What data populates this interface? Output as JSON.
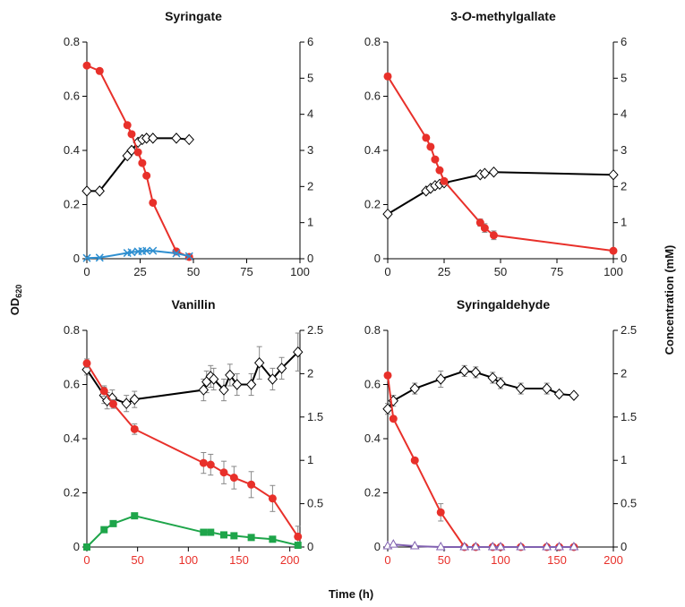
{
  "figure": {
    "ylabel_left": "OD",
    "ylabel_left_subscript": "620",
    "ylabel_right": "Concentration (mM)",
    "xlabel": "Time (h)"
  },
  "colors": {
    "od": "#000000",
    "substrate": "#e8302a",
    "blue_series": "#2e8fd0",
    "green_series": "#1ea54a",
    "purple_series": "#8060b0",
    "error_bar": "#888888",
    "red_axis_labels": "#e8302a"
  },
  "chart_data": [
    {
      "type": "line",
      "title": "Syringate",
      "xlim": [
        0,
        100
      ],
      "xticks": [
        0,
        25,
        50,
        75,
        100
      ],
      "ylim_left": [
        0,
        0.8
      ],
      "yticks_left": [
        0,
        0.2,
        0.4,
        0.6,
        0.8
      ],
      "ylim_right": [
        0,
        6
      ],
      "yticks_right": [
        0,
        1,
        2,
        3,
        4,
        5,
        6
      ],
      "xtick_color": "black",
      "grid": false,
      "series": [
        {
          "axis": "left",
          "color": "#000000",
          "marker": "diamond-open",
          "x": [
            0,
            6,
            19,
            21,
            24,
            26,
            28,
            31,
            42,
            48
          ],
          "y": [
            0.25,
            0.25,
            0.38,
            0.4,
            0.43,
            0.44,
            0.445,
            0.445,
            0.445,
            0.44
          ]
        },
        {
          "axis": "right",
          "color": "#e8302a",
          "marker": "circle",
          "x": [
            0,
            6,
            19,
            21,
            24,
            26,
            28,
            31,
            42,
            48
          ],
          "y": [
            5.35,
            5.2,
            3.7,
            3.45,
            2.95,
            2.65,
            2.3,
            1.55,
            0.2,
            0.05
          ]
        },
        {
          "axis": "right",
          "color": "#2e8fd0",
          "marker": "x",
          "x": [
            0,
            6,
            19,
            21,
            24,
            26,
            28,
            31,
            42,
            48
          ],
          "y": [
            0.02,
            0.03,
            0.16,
            0.18,
            0.2,
            0.21,
            0.22,
            0.22,
            0.15,
            0.07
          ]
        }
      ]
    },
    {
      "type": "line",
      "title_parts": [
        "3-",
        "O",
        "-methylgallate"
      ],
      "xlim": [
        0,
        100
      ],
      "xticks": [
        0,
        25,
        50,
        75,
        100
      ],
      "ylim_left": [
        0,
        0.8
      ],
      "yticks_left": [
        0,
        0.2,
        0.4,
        0.6,
        0.8
      ],
      "ylim_right": [
        0,
        6
      ],
      "yticks_right": [
        0,
        1,
        2,
        3,
        4,
        5,
        6
      ],
      "xtick_color": "black",
      "grid": false,
      "series": [
        {
          "axis": "left",
          "color": "#000000",
          "marker": "diamond-open",
          "x": [
            0,
            17,
            19,
            21,
            23,
            25,
            41,
            43,
            47,
            100
          ],
          "y": [
            0.165,
            0.25,
            0.26,
            0.27,
            0.275,
            0.28,
            0.31,
            0.315,
            0.32,
            0.31
          ]
        },
        {
          "axis": "right",
          "color": "#e8302a",
          "marker": "circle",
          "error": true,
          "x": [
            0,
            17,
            19,
            21,
            23,
            25,
            41,
            43,
            47,
            100
          ],
          "y": [
            5.05,
            3.35,
            3.1,
            2.75,
            2.45,
            2.15,
            1.0,
            0.85,
            0.65,
            0.22
          ],
          "err": [
            0.08,
            0.07,
            0.07,
            0.07,
            0.07,
            0.07,
            0.1,
            0.12,
            0.12,
            0
          ]
        }
      ]
    },
    {
      "type": "line",
      "title": "Vanillin",
      "xlim": [
        0,
        210
      ],
      "xticks": [
        0,
        50,
        100,
        150,
        200
      ],
      "ylim_left": [
        0,
        0.8
      ],
      "yticks_left": [
        0,
        0.2,
        0.4,
        0.6,
        0.8
      ],
      "ylim_right": [
        0,
        2.5
      ],
      "yticks_right": [
        0,
        0.5,
        1,
        1.5,
        2,
        2.5
      ],
      "xtick_color": "red",
      "grid": false,
      "series": [
        {
          "axis": "left",
          "color": "#000000",
          "marker": "diamond-open",
          "error": true,
          "x": [
            0,
            17,
            20,
            25,
            39,
            47,
            115,
            118,
            122,
            125,
            135,
            141,
            148,
            162,
            170,
            183,
            192,
            208
          ],
          "y": [
            0.655,
            0.56,
            0.54,
            0.55,
            0.53,
            0.545,
            0.58,
            0.61,
            0.63,
            0.62,
            0.58,
            0.635,
            0.6,
            0.6,
            0.68,
            0.62,
            0.66,
            0.72
          ],
          "err": [
            0.02,
            0.03,
            0.03,
            0.03,
            0.03,
            0.03,
            0.04,
            0.04,
            0.04,
            0.04,
            0.04,
            0.04,
            0.04,
            0.04,
            0.06,
            0.04,
            0.04,
            0.07
          ]
        },
        {
          "axis": "right",
          "color": "#e8302a",
          "marker": "circle",
          "error": true,
          "x": [
            0,
            17,
            26,
            47,
            115,
            122,
            135,
            145,
            162,
            183,
            208
          ],
          "y": [
            2.12,
            1.8,
            1.65,
            1.36,
            0.97,
            0.95,
            0.86,
            0.8,
            0.72,
            0.56,
            0.12
          ],
          "err": [
            0.05,
            0.06,
            0.05,
            0.06,
            0.12,
            0.12,
            0.13,
            0.13,
            0.15,
            0.15,
            0.12
          ]
        },
        {
          "axis": "right",
          "color": "#1ea54a",
          "marker": "square",
          "x": [
            0,
            17,
            26,
            47,
            115,
            122,
            135,
            145,
            162,
            183,
            208
          ],
          "y": [
            0.0,
            0.2,
            0.27,
            0.36,
            0.17,
            0.17,
            0.14,
            0.13,
            0.11,
            0.09,
            0.02
          ]
        }
      ]
    },
    {
      "type": "line",
      "title": "Syringaldehyde",
      "xlim": [
        0,
        200
      ],
      "xticks": [
        0,
        50,
        100,
        150,
        200
      ],
      "ylim_left": [
        0,
        0.8
      ],
      "yticks_left": [
        0,
        0.2,
        0.4,
        0.6,
        0.8
      ],
      "ylim_right": [
        0,
        2.5
      ],
      "yticks_right": [
        0,
        0.5,
        1,
        1.5,
        2,
        2.5
      ],
      "xtick_color": "red",
      "grid": false,
      "series": [
        {
          "axis": "left",
          "color": "#000000",
          "marker": "diamond-open",
          "error": true,
          "x": [
            0,
            5,
            24,
            47,
            68,
            78,
            93,
            100,
            118,
            141,
            152,
            165
          ],
          "y": [
            0.51,
            0.54,
            0.585,
            0.62,
            0.65,
            0.645,
            0.625,
            0.605,
            0.585,
            0.585,
            0.565,
            0.56
          ],
          "err": [
            0.02,
            0.02,
            0.02,
            0.03,
            0.02,
            0.02,
            0.02,
            0.02,
            0.02,
            0.02,
            0.01,
            0.01
          ]
        },
        {
          "axis": "right",
          "color": "#e8302a",
          "marker": "circle",
          "error": true,
          "x": [
            0,
            5,
            24,
            47,
            68,
            78,
            93,
            100,
            118,
            141,
            152,
            165
          ],
          "y": [
            1.98,
            1.48,
            1.0,
            0.4,
            0.0,
            0.0,
            0.0,
            0.0,
            0.0,
            0.0,
            0.0,
            0.0
          ],
          "err": [
            0.03,
            0.03,
            0.03,
            0.1,
            0,
            0,
            0,
            0,
            0,
            0,
            0,
            0
          ]
        },
        {
          "axis": "right",
          "color": "#8060b0",
          "marker": "triangle-open",
          "x": [
            0,
            5,
            24,
            47,
            68,
            78,
            93,
            100,
            118,
            141,
            152,
            165
          ],
          "y": [
            0.01,
            0.03,
            0.01,
            0.0,
            0.0,
            0.0,
            0.0,
            0.0,
            0.0,
            0.0,
            0.0,
            0.0
          ]
        }
      ]
    }
  ]
}
